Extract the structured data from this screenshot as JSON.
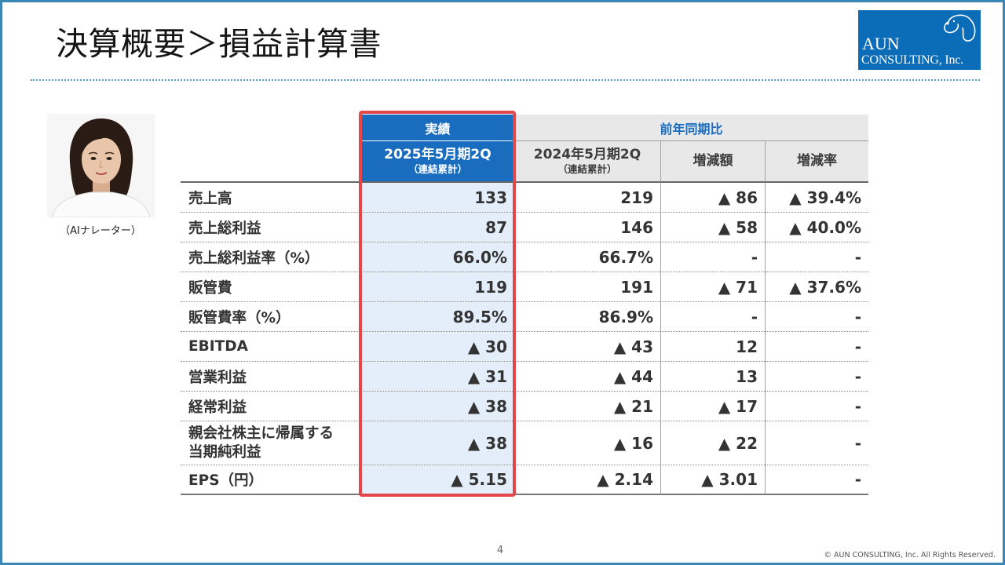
{
  "slide": {
    "title": "決算概要＞損益計算書",
    "page_number": "4",
    "copyright": "© AUN CONSULTING, Inc. All Rights Reserved."
  },
  "logo": {
    "line1": "AUN",
    "line2": "CONSULTING, Inc.",
    "icon": "dog-icon"
  },
  "narrator": {
    "image": "woman-portrait",
    "caption": "（AIナレーター）"
  },
  "table": {
    "group_actual": "実績",
    "group_comparison": "前年同期比",
    "columns": [
      {
        "period": "2025年5月期2Q",
        "note": "（連結累計）"
      },
      {
        "period": "2024年5月期2Q",
        "note": "（連結累計）"
      },
      {
        "period": "増減額"
      },
      {
        "period": "増減率"
      }
    ],
    "rows": [
      {
        "label": "売上高",
        "values": [
          "133",
          "219",
          "▲ 86",
          "▲ 39.4%"
        ]
      },
      {
        "label": "売上総利益",
        "values": [
          "87",
          "146",
          "▲ 58",
          "▲ 40.0%"
        ]
      },
      {
        "label": "売上総利益率（%）",
        "values": [
          "66.0%",
          "66.7%",
          "-",
          "-"
        ]
      },
      {
        "label": "販管費",
        "values": [
          "119",
          "191",
          "▲ 71",
          "▲ 37.6%"
        ]
      },
      {
        "label": "販管費率（%）",
        "values": [
          "89.5%",
          "86.9%",
          "-",
          "-"
        ]
      },
      {
        "label": "EBITDA",
        "values": [
          "▲ 30",
          "▲ 43",
          "12",
          "-"
        ]
      },
      {
        "label": "営業利益",
        "values": [
          "▲ 31",
          "▲ 44",
          "13",
          "-"
        ]
      },
      {
        "label": "経常利益",
        "values": [
          "▲ 38",
          "▲ 21",
          "▲ 17",
          "-"
        ]
      },
      {
        "label": "親会社株主に帰属する",
        "label_line2": "当期純利益",
        "values": [
          "▲ 38",
          "▲ 16",
          "▲ 22",
          "-"
        ]
      },
      {
        "label": "EPS（円）",
        "values": [
          "▲ 5.15",
          "▲ 2.14",
          "▲ 3.01",
          "-"
        ]
      }
    ]
  },
  "colors": {
    "frame": "#3a86b4",
    "logo": "#0b6cb7",
    "accent_blue": "#1a6cbf",
    "comparison_header": "#e8e8e8",
    "highlight_fill": "#e3eefa",
    "highlight_border": "#e4474b"
  }
}
